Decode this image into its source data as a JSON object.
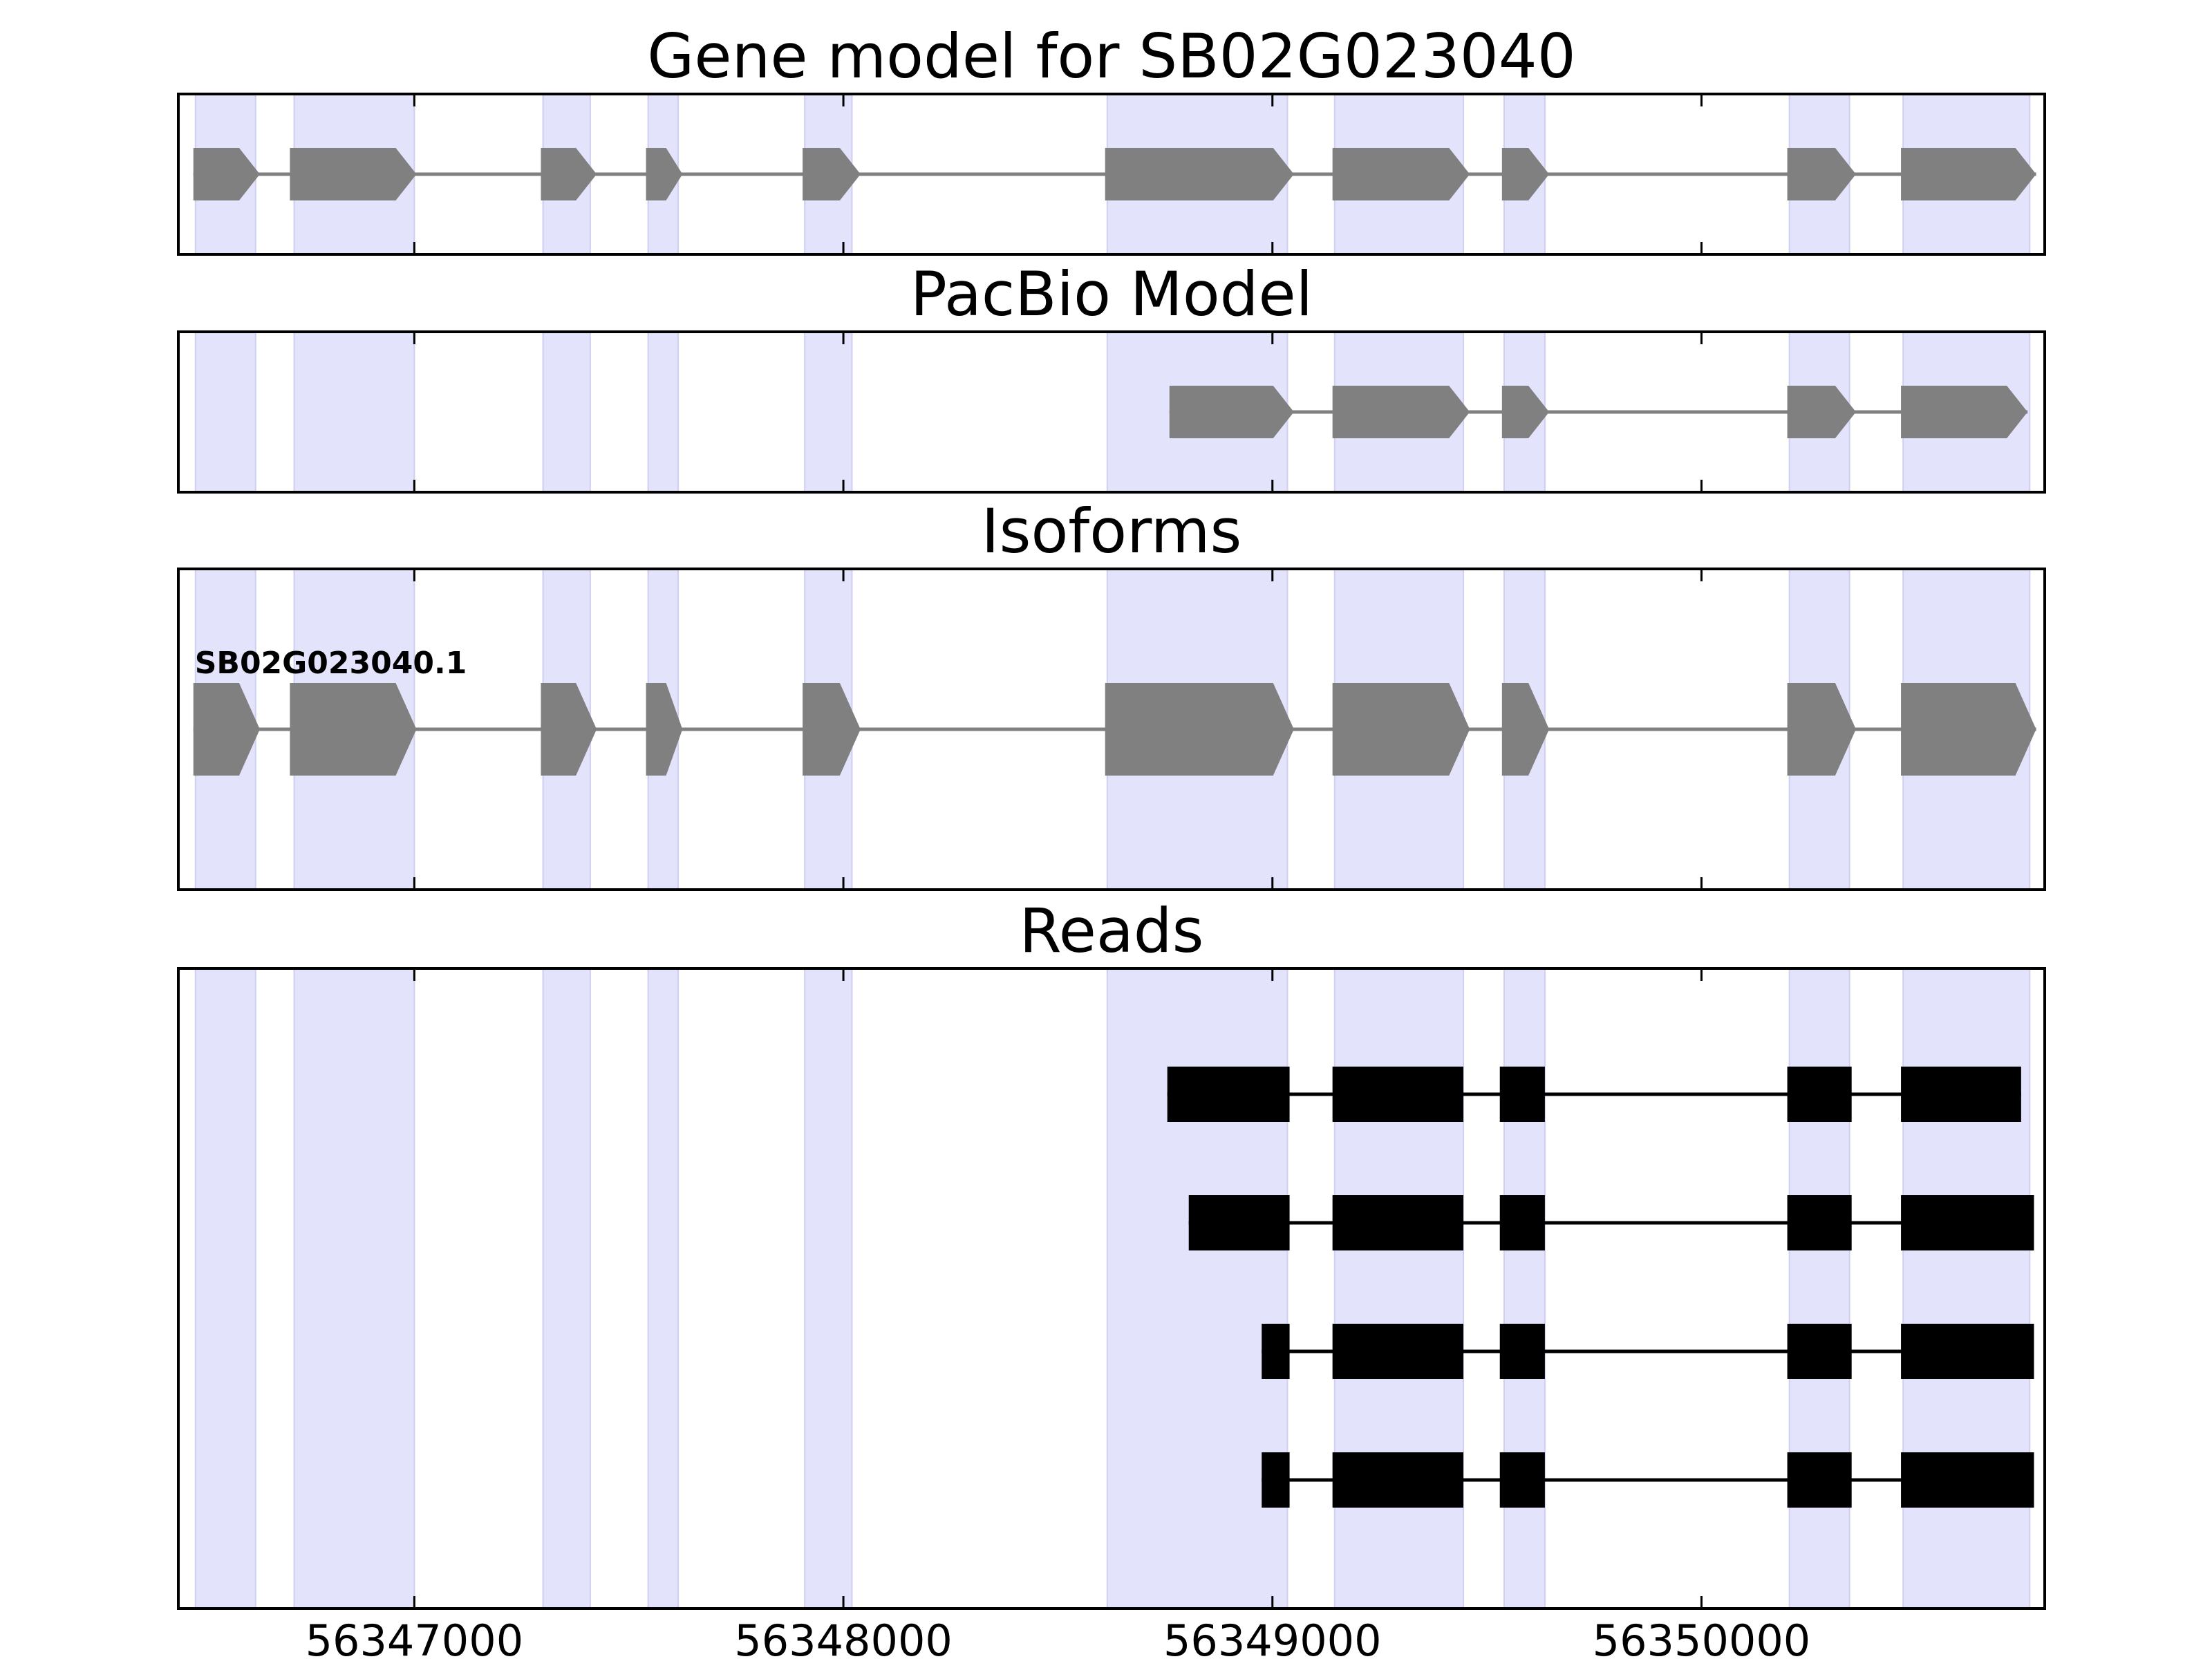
{
  "chart_data": {
    "type": "gene-model",
    "x_ticks": [
      56347000,
      56348000,
      56349000,
      56350000
    ],
    "xlim": [
      56346450,
      56350800
    ],
    "highlight_color": "#e3e3fb",
    "highlight_regions": [
      [
        56346490,
        56346630
      ],
      [
        56346720,
        56347000
      ],
      [
        56347300,
        56347410
      ],
      [
        56347545,
        56347615
      ],
      [
        56347910,
        56348020
      ],
      [
        56348615,
        56349035
      ],
      [
        56349145,
        56349445
      ],
      [
        56349540,
        56349635
      ],
      [
        56350205,
        56350345
      ],
      [
        56350470,
        56350765
      ]
    ],
    "panels": [
      {
        "title": "Gene model for SB02G023040",
        "tracks": [
          {
            "label": "",
            "style": "arrow",
            "color": "#808080",
            "exons": [
              [
                56346485,
                56346640
              ],
              [
                56346710,
                56347005
              ],
              [
                56347295,
                56347425
              ],
              [
                56347540,
                56347625
              ],
              [
                56347905,
                56348040
              ],
              [
                56348610,
                56349050
              ],
              [
                56349140,
                56349460
              ],
              [
                56349535,
                56349645
              ],
              [
                56350200,
                56350360
              ],
              [
                56350465,
                56350780
              ]
            ]
          }
        ]
      },
      {
        "title": "PacBio Model",
        "tracks": [
          {
            "label": "",
            "style": "arrow",
            "color": "#808080",
            "exons": [
              [
                56348760,
                56349050
              ],
              [
                56349140,
                56349460
              ],
              [
                56349535,
                56349645
              ],
              [
                56350200,
                56350360
              ],
              [
                56350465,
                56350760
              ]
            ]
          }
        ]
      },
      {
        "title": "Isoforms",
        "tracks": [
          {
            "label": "SB02G023040.1",
            "style": "arrow",
            "color": "#808080",
            "exons": [
              [
                56346485,
                56346640
              ],
              [
                56346710,
                56347005
              ],
              [
                56347295,
                56347425
              ],
              [
                56347540,
                56347625
              ],
              [
                56347905,
                56348040
              ],
              [
                56348610,
                56349050
              ],
              [
                56349140,
                56349460
              ],
              [
                56349535,
                56349645
              ],
              [
                56350200,
                56350360
              ],
              [
                56350465,
                56350780
              ]
            ]
          }
        ]
      },
      {
        "title": "Reads",
        "tracks": [
          {
            "label": "",
            "style": "box",
            "color": "#000000",
            "exons": [
              [
                56348755,
                56349040
              ],
              [
                56349140,
                56349445
              ],
              [
                56349530,
                56349635
              ],
              [
                56350200,
                56350350
              ],
              [
                56350465,
                56350745
              ]
            ]
          },
          {
            "label": "",
            "style": "box",
            "color": "#000000",
            "exons": [
              [
                56348805,
                56349040
              ],
              [
                56349140,
                56349445
              ],
              [
                56349530,
                56349635
              ],
              [
                56350200,
                56350350
              ],
              [
                56350465,
                56350775
              ]
            ]
          },
          {
            "label": "",
            "style": "box",
            "color": "#000000",
            "exons": [
              [
                56348975,
                56349040
              ],
              [
                56349140,
                56349445
              ],
              [
                56349530,
                56349635
              ],
              [
                56350200,
                56350350
              ],
              [
                56350465,
                56350775
              ]
            ]
          },
          {
            "label": "",
            "style": "box",
            "color": "#000000",
            "exons": [
              [
                56348975,
                56349040
              ],
              [
                56349140,
                56349445
              ],
              [
                56349530,
                56349635
              ],
              [
                56350200,
                56350350
              ],
              [
                56350465,
                56350775
              ]
            ]
          }
        ]
      }
    ]
  }
}
